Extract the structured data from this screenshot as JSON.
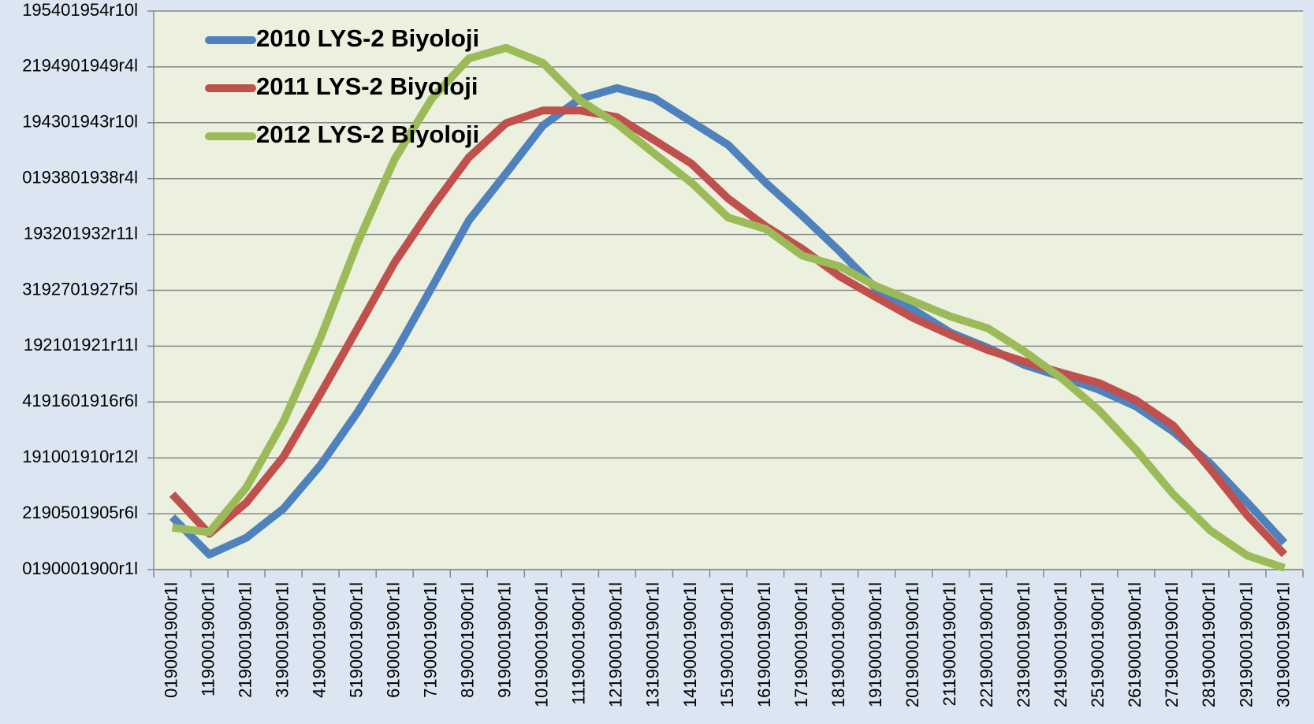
{
  "chart_data": {
    "type": "line",
    "categories": [
      "0190001900r1l",
      "1190001900r1l",
      "2190001900r1l",
      "3190001900r1l",
      "4190001900r1l",
      "5190001900r1l",
      "6190001900r1l",
      "7190001900r1l",
      "8190001900r1l",
      "9190001900r1l",
      "10190001900r1l",
      "11190001900r1l",
      "12190001900r1l",
      "13190001900r1l",
      "14190001900r1l",
      "15190001900r1l",
      "16190001900r1l",
      "17190001900r1l",
      "18190001900r1l",
      "19190001900r1l",
      "20190001900r1l",
      "21190001900r1l",
      "22190001900r1l",
      "23190001900r1l",
      "24190001900r1l",
      "25190001900r1l",
      "26190001900r1l",
      "27190001900r1l",
      "28190001900r1l",
      "29190001900r1l",
      "30190001900r1l"
    ],
    "series": [
      {
        "name": "2010 LYS-2 Biyoloji",
        "color": "#4f81bd",
        "values": [
          0.94,
          0.27,
          0.57,
          1.09,
          1.87,
          2.82,
          3.87,
          5.05,
          6.25,
          7.09,
          7.95,
          8.43,
          8.62,
          8.44,
          8.02,
          7.6,
          6.93,
          6.33,
          5.7,
          5.02,
          4.65,
          4.24,
          3.97,
          3.66,
          3.45,
          3.22,
          2.92,
          2.47,
          1.9,
          1.2,
          0.48
        ]
      },
      {
        "name": "2011 LYS-2 Biyoloji",
        "color": "#c0504d",
        "values": [
          1.35,
          0.64,
          1.2,
          2.02,
          3.15,
          4.32,
          5.5,
          6.48,
          7.38,
          7.99,
          8.22,
          8.22,
          8.1,
          7.69,
          7.27,
          6.64,
          6.15,
          5.74,
          5.25,
          4.87,
          4.5,
          4.2,
          3.93,
          3.72,
          3.52,
          3.34,
          3.03,
          2.58,
          1.8,
          0.97,
          0.27
        ]
      },
      {
        "name": "2012 LYS-2 Biyoloji",
        "color": "#9bbb59",
        "values": [
          0.75,
          0.67,
          1.47,
          2.65,
          4.15,
          5.85,
          7.35,
          8.43,
          9.15,
          9.34,
          9.07,
          8.4,
          7.98,
          7.45,
          6.93,
          6.3,
          6.1,
          5.62,
          5.43,
          5.07,
          4.8,
          4.53,
          4.32,
          3.9,
          3.42,
          2.85,
          2.14,
          1.35,
          0.7,
          0.25,
          0.03
        ]
      }
    ],
    "ylim": [
      0,
      10
    ],
    "yticks": [
      {
        "value": 0,
        "label": "0190001900r1l"
      },
      {
        "value": 1,
        "label": "2190501905r6l"
      },
      {
        "value": 2,
        "label": "191001910r12l"
      },
      {
        "value": 3,
        "label": "4191601916r6l"
      },
      {
        "value": 4,
        "label": "192101921r11l"
      },
      {
        "value": 5,
        "label": "3192701927r5l"
      },
      {
        "value": 6,
        "label": "193201932r11l"
      },
      {
        "value": 7,
        "label": "0193801938r4l"
      },
      {
        "value": 8,
        "label": "194301943r10l"
      },
      {
        "value": 9,
        "label": "2194901949r4l"
      },
      {
        "value": 10,
        "label": "195401954r10l"
      }
    ],
    "grid": true,
    "legend": "upper-left",
    "plot_background": "#ebf1de"
  }
}
